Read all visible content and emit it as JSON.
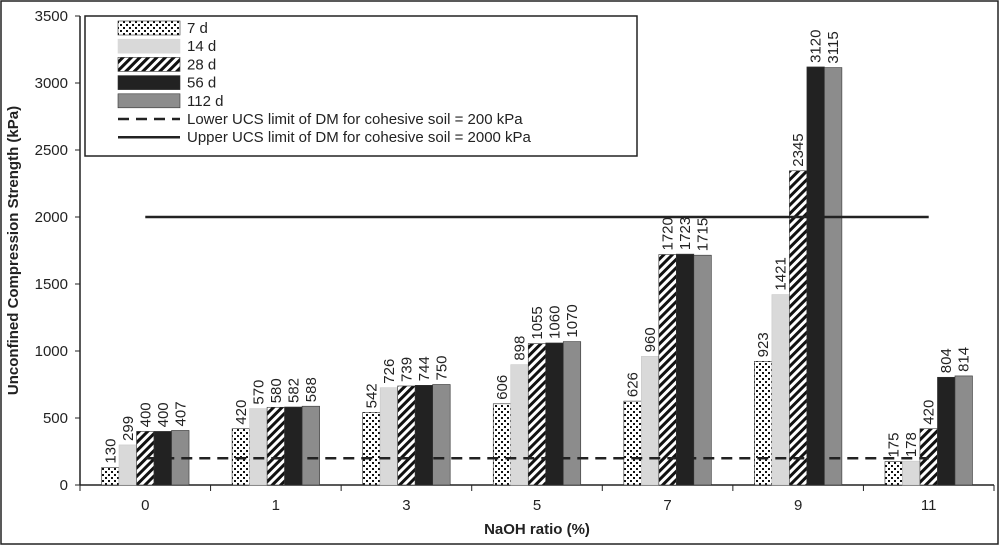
{
  "chart_data": {
    "type": "bar",
    "title": "",
    "xlabel": "NaOH ratio (%)",
    "ylabel": "Unconfined Compression Strength (kPa)",
    "ylim": [
      0,
      3500
    ],
    "yticks": [
      0,
      500,
      1000,
      1500,
      2000,
      2500,
      3000,
      3500
    ],
    "categories": [
      "0",
      "1",
      "3",
      "5",
      "7",
      "9",
      "11"
    ],
    "series": [
      {
        "name": "7 d",
        "pattern": "dots",
        "color": "#ffffff",
        "values": [
          130,
          420,
          542,
          606,
          626,
          923,
          175
        ]
      },
      {
        "name": "14 d",
        "pattern": "solid",
        "color": "#d9d9d9",
        "values": [
          299,
          570,
          726,
          898,
          960,
          1421,
          178
        ]
      },
      {
        "name": "28 d",
        "pattern": "hatch",
        "color": "#ffffff",
        "values": [
          400,
          580,
          739,
          1055,
          1720,
          2345,
          420
        ]
      },
      {
        "name": "56 d",
        "pattern": "solid",
        "color": "#222222",
        "values": [
          400,
          582,
          744,
          1060,
          1723,
          3120,
          804
        ]
      },
      {
        "name": "112 d",
        "pattern": "solid",
        "color": "#8c8c8c",
        "values": [
          407,
          588,
          750,
          1070,
          1715,
          3115,
          814
        ]
      }
    ],
    "reference_lines": [
      {
        "name": "Lower UCS limit of DM for cohesive soil = 200 kPa",
        "value": 200,
        "style": "dashed"
      },
      {
        "name": "Upper UCS limit of DM for cohesive soil = 2000 kPa",
        "value": 2000,
        "style": "solid"
      }
    ],
    "legend_position": "top-left",
    "grid": false
  }
}
